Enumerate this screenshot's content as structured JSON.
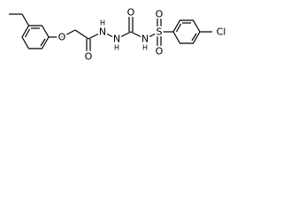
{
  "atoms": [
    "O",
    "O",
    "N",
    "H",
    "N",
    "H",
    "O",
    "N",
    "H",
    "S",
    "O",
    "O",
    "Cl"
  ]
}
